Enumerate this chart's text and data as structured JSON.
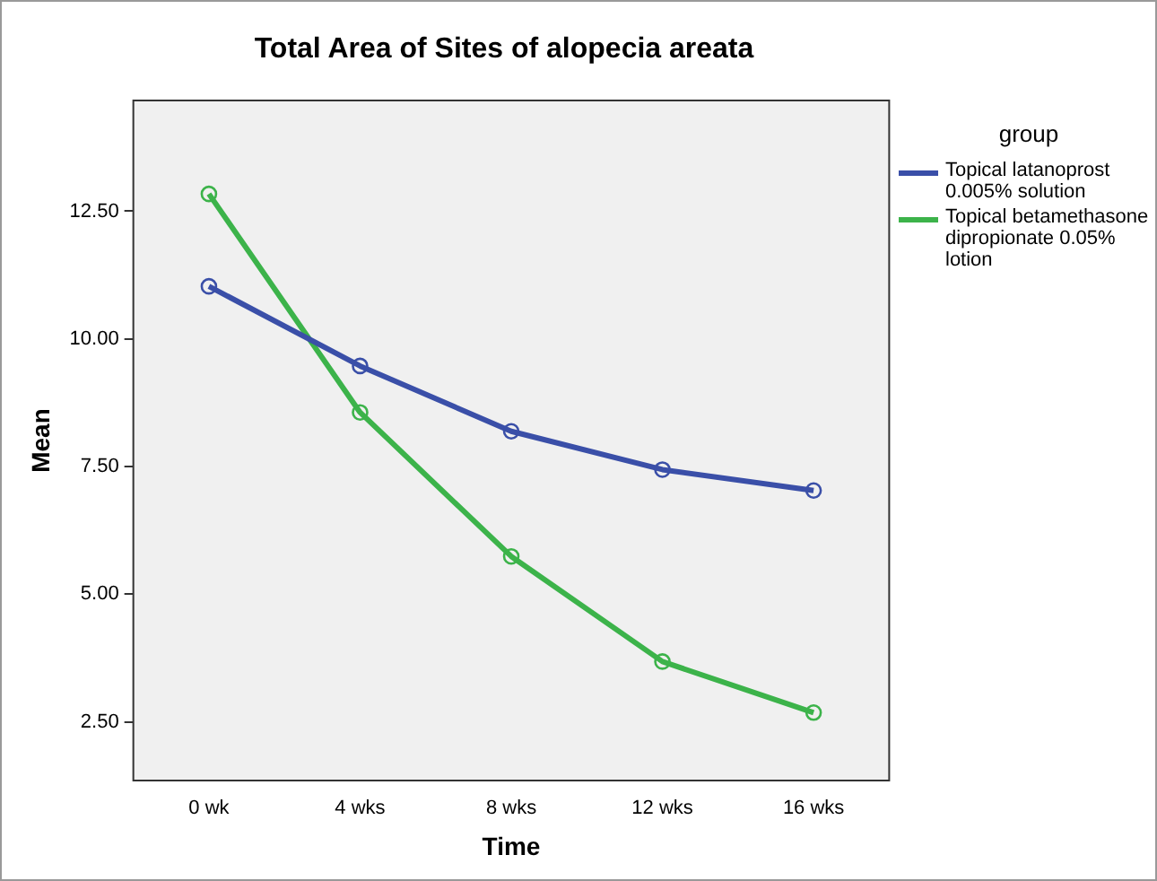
{
  "chart_data": {
    "type": "line",
    "title": "Total Area of Sites of alopecia areata",
    "xlabel": "Time",
    "ylabel": "Mean",
    "legend_title": "group",
    "categories": [
      "0 wk",
      "4 wks",
      "8 wks",
      "12 wks",
      "16 wks"
    ],
    "series": [
      {
        "name": "Topical latanoprost 0.005% solution",
        "color": "#3a4fa8",
        "values": [
          11.03,
          9.47,
          8.19,
          7.44,
          7.03
        ]
      },
      {
        "name": "Topical betamethasone dipropionate 0.05% lotion",
        "color": "#3cb34a",
        "values": [
          12.84,
          8.56,
          5.74,
          3.68,
          2.68
        ]
      }
    ],
    "ylim": [
      1.35,
      14.67
    ],
    "yticks": [
      {
        "value": 2.5,
        "label": "2.50"
      },
      {
        "value": 5,
        "label": "5.00"
      },
      {
        "value": 7.5,
        "label": "7.50"
      },
      {
        "value": 10,
        "label": "10.00"
      },
      {
        "value": 12.5,
        "label": "12.50"
      }
    ],
    "grid": false,
    "legend": "right",
    "marker": "circle",
    "line_style": "solid"
  }
}
